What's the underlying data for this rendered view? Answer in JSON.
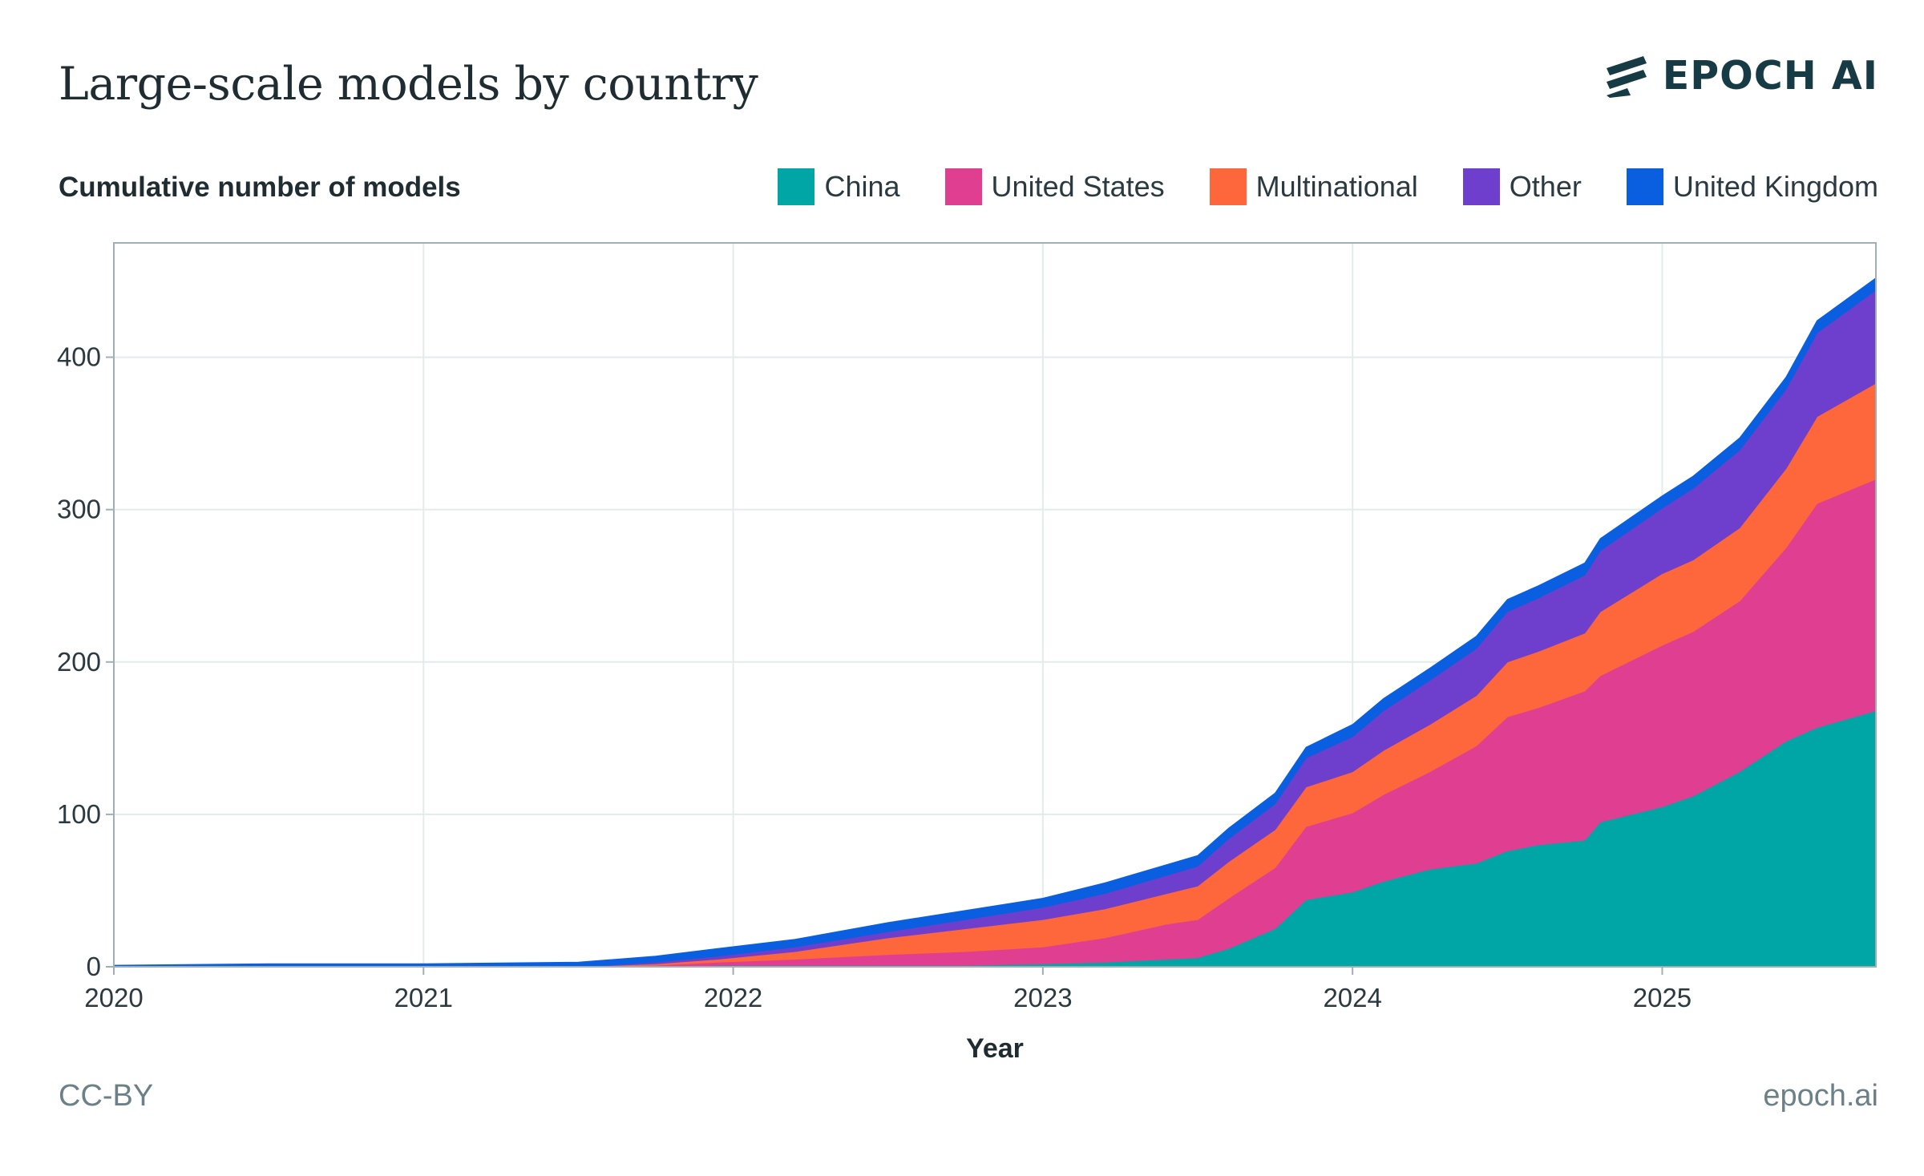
{
  "title": "Large-scale models by country",
  "brand": {
    "name": "EPOCH AI",
    "logo_icon": "epoch-stripes-logo"
  },
  "footer": {
    "license": "CC-BY",
    "site": "epoch.ai"
  },
  "colors": {
    "China": "#00a5a6",
    "United States": "#e03e90",
    "Multinational": "#fe663c",
    "Other": "#6e3fcd",
    "United Kingdom": "#0a5fe0",
    "grid": "#e4eceb",
    "text": "#1f2d32"
  },
  "chart_data": {
    "type": "area",
    "stacked": true,
    "ylabel": "Cumulative number of models",
    "xlabel": "Year",
    "xlim": [
      2020.0,
      2025.69
    ],
    "ylim": [
      0,
      475
    ],
    "xticks": [
      2020,
      2021,
      2022,
      2023,
      2024,
      2025
    ],
    "yticks": [
      0,
      100,
      200,
      300,
      400
    ],
    "grid": true,
    "legend_position": "top-right",
    "x": [
      2020.0,
      2020.5,
      2021.0,
      2021.5,
      2021.75,
      2021.95,
      2022.2,
      2022.5,
      2022.75,
      2023.0,
      2023.2,
      2023.4,
      2023.5,
      2023.6,
      2023.75,
      2023.85,
      2024.0,
      2024.1,
      2024.25,
      2024.4,
      2024.5,
      2024.6,
      2024.75,
      2024.8,
      2025.0,
      2025.1,
      2025.25,
      2025.4,
      2025.5,
      2025.69
    ],
    "series": [
      {
        "name": "China",
        "values": [
          0,
          0,
          0,
          0,
          0,
          1,
          1,
          1,
          1,
          2,
          3,
          5,
          6,
          12,
          25,
          44,
          49,
          56,
          64,
          68,
          76,
          80,
          83,
          95,
          105,
          112,
          128,
          148,
          157,
          168
        ]
      },
      {
        "name": "United States",
        "values": [
          0,
          0,
          0,
          0,
          1,
          2,
          4,
          7,
          9,
          11,
          16,
          23,
          25,
          33,
          40,
          48,
          52,
          57,
          64,
          77,
          88,
          90,
          98,
          96,
          106,
          108,
          112,
          127,
          147,
          152
        ]
      },
      {
        "name": "Multinational",
        "values": [
          0,
          0,
          0,
          0,
          1,
          2,
          5,
          11,
          15,
          18,
          19,
          20,
          22,
          24,
          25,
          26,
          27,
          29,
          31,
          33,
          36,
          37,
          38,
          42,
          47,
          47,
          48,
          52,
          57,
          63
        ]
      },
      {
        "name": "Other",
        "values": [
          0,
          0,
          0,
          0,
          1,
          2,
          3,
          4,
          6,
          8,
          10,
          12,
          13,
          15,
          17,
          19,
          23,
          26,
          29,
          31,
          33,
          35,
          38,
          40,
          43,
          47,
          51,
          52,
          55,
          61
        ]
      },
      {
        "name": "United Kingdom",
        "values": [
          1,
          2,
          2,
          3,
          4,
          5,
          5,
          6,
          6,
          6,
          7,
          7,
          7,
          7,
          7,
          7,
          8,
          8,
          8,
          8,
          8,
          8,
          8,
          8,
          8,
          8,
          8,
          8,
          8,
          8
        ]
      }
    ]
  }
}
